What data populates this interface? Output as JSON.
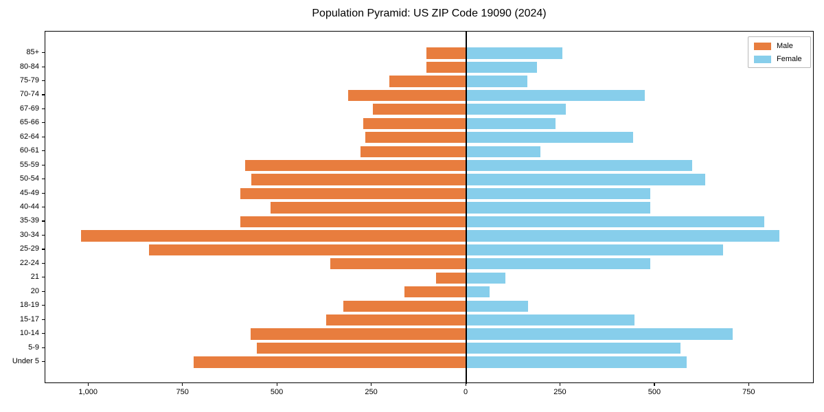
{
  "title": "Population Pyramid: US ZIP Code 19090 (2024)",
  "colors": {
    "male": "#E87D3E",
    "female": "#87CEEB",
    "axis": "#000000",
    "legend_border": "#b7b7b7"
  },
  "legend": {
    "position": "upper right",
    "entries": [
      {
        "label": "Male",
        "color_key": "male"
      },
      {
        "label": "Female",
        "color_key": "female"
      }
    ]
  },
  "chart_data": {
    "type": "bar",
    "subtype": "population-pyramid-horizontal",
    "title": "Population Pyramid: US ZIP Code 19090 (2024)",
    "categories": [
      "85+",
      "80-84",
      "75-79",
      "70-74",
      "67-69",
      "65-66",
      "62-64",
      "60-61",
      "55-59",
      "50-54",
      "45-49",
      "40-44",
      "35-39",
      "30-34",
      "25-29",
      "22-24",
      "21",
      "20",
      "18-19",
      "15-17",
      "10-14",
      "5-9",
      "Under 5"
    ],
    "series": [
      {
        "name": "Male",
        "direction": "left",
        "values": [
          105,
          106,
          204,
          313,
          247,
          273,
          268,
          280,
          586,
          570,
          599,
          519,
          599,
          1021,
          841,
          360,
          81,
          164,
          325,
          371,
          571,
          554,
          723
        ]
      },
      {
        "name": "Female",
        "direction": "right",
        "values": [
          255,
          188,
          161,
          473,
          264,
          237,
          442,
          197,
          599,
          633,
          488,
          488,
          790,
          830,
          681,
          488,
          103,
          61,
          163,
          445,
          706,
          568,
          583
        ]
      }
    ],
    "x_ticks": [
      -1000,
      -750,
      -500,
      -250,
      0,
      250,
      500,
      750
    ],
    "x_tick_labels": [
      "1,000",
      "750",
      "500",
      "250",
      "0",
      "250",
      "500",
      "750"
    ],
    "xlim": [
      -1115,
      922
    ],
    "ylabel": "",
    "xlabel": "",
    "grid": false,
    "zero_line": true
  }
}
